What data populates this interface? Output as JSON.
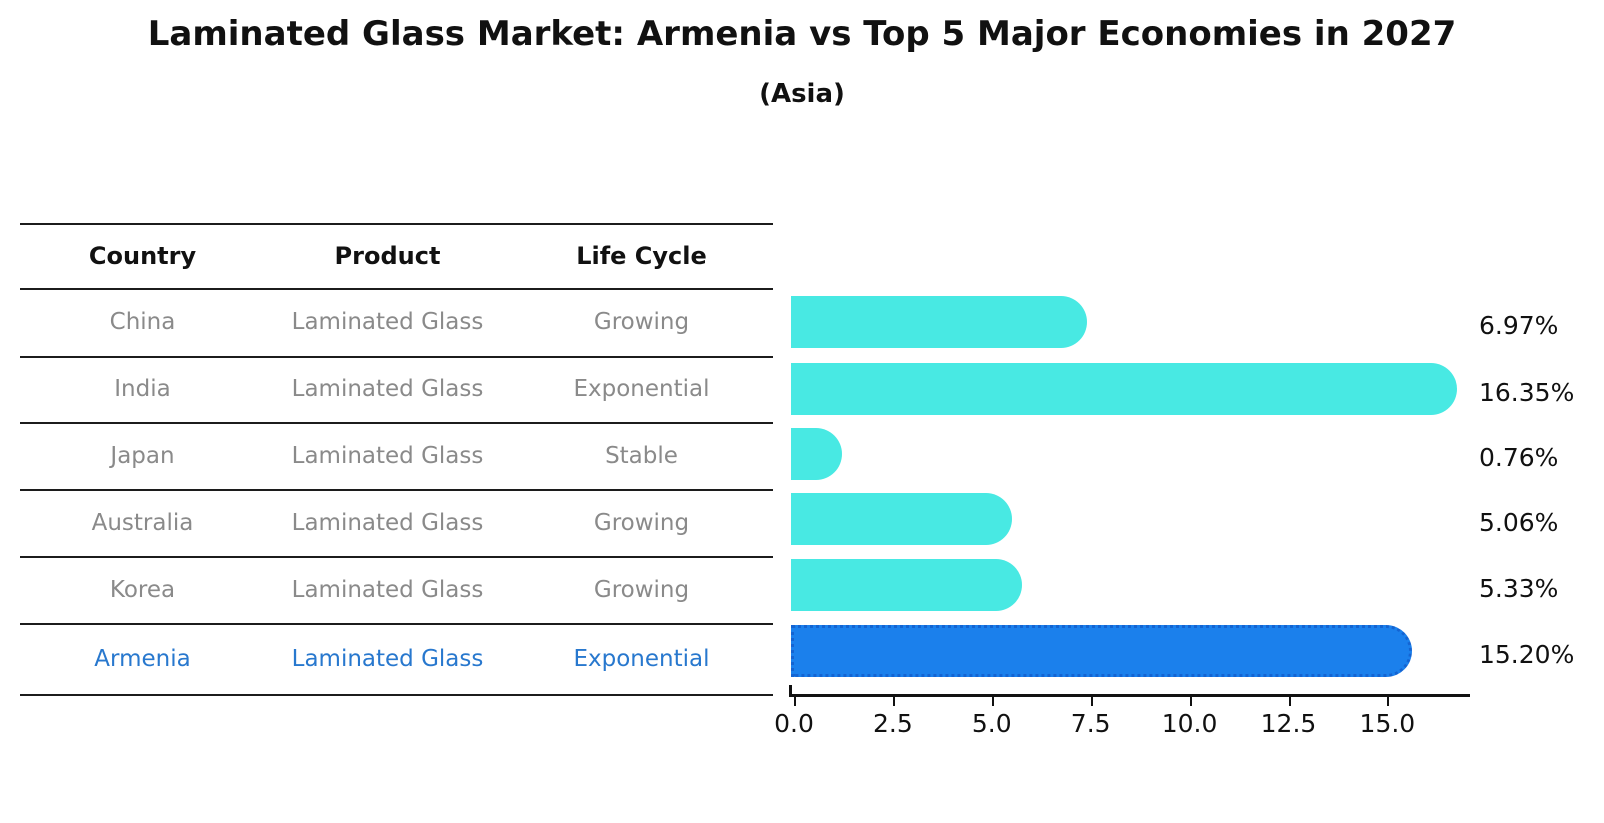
{
  "title": "Laminated Glass Market: Armenia vs Top 5 Major Economies in 2027",
  "subtitle": "(Asia)",
  "table": {
    "headers": [
      "Country",
      "Product",
      "Life Cycle"
    ],
    "rows": [
      {
        "country": "China",
        "product": "Laminated Glass",
        "life_cycle": "Growing",
        "highlight": false
      },
      {
        "country": "India",
        "product": "Laminated Glass",
        "life_cycle": "Exponential",
        "highlight": false
      },
      {
        "country": "Japan",
        "product": "Laminated Glass",
        "life_cycle": "Stable",
        "highlight": false
      },
      {
        "country": "Australia",
        "product": "Laminated Glass",
        "life_cycle": "Growing",
        "highlight": false
      },
      {
        "country": "Korea",
        "product": "Laminated Glass",
        "life_cycle": "Growing",
        "highlight": false
      },
      {
        "country": "Armenia",
        "product": "Laminated Glass",
        "life_cycle": "Exponential",
        "highlight": true
      }
    ]
  },
  "chart_data": {
    "type": "bar",
    "orientation": "horizontal",
    "categories": [
      "China",
      "India",
      "Japan",
      "Australia",
      "Korea",
      "Armenia"
    ],
    "values": [
      6.97,
      16.35,
      0.76,
      5.06,
      5.33,
      15.2
    ],
    "value_labels": [
      "6.97%",
      "16.35%",
      "0.76%",
      "5.06%",
      "5.33%",
      "15.20%"
    ],
    "xticks": [
      "0.0",
      "2.5",
      "5.0",
      "7.5",
      "10.0",
      "12.5",
      "15.0"
    ],
    "xtick_values": [
      0,
      2.5,
      5,
      7.5,
      10,
      12.5,
      15
    ],
    "xlim": [
      0,
      17.2
    ],
    "grid": false,
    "title": "Laminated Glass Market: Armenia vs Top 5 Major Economies in 2027",
    "subtitle": "(Asia)",
    "xlabel": "",
    "ylabel": "",
    "highlight_index": 5,
    "bar_color": "#48E9E3",
    "highlight_bar_color": "#1B80EC",
    "highlight_border_color": "#1464D2"
  },
  "colors": {
    "background": "#ffffff",
    "header_text": "#111111",
    "row_text": "#8a8a8a",
    "highlight_text": "#2878CE",
    "axis": "#111111"
  }
}
